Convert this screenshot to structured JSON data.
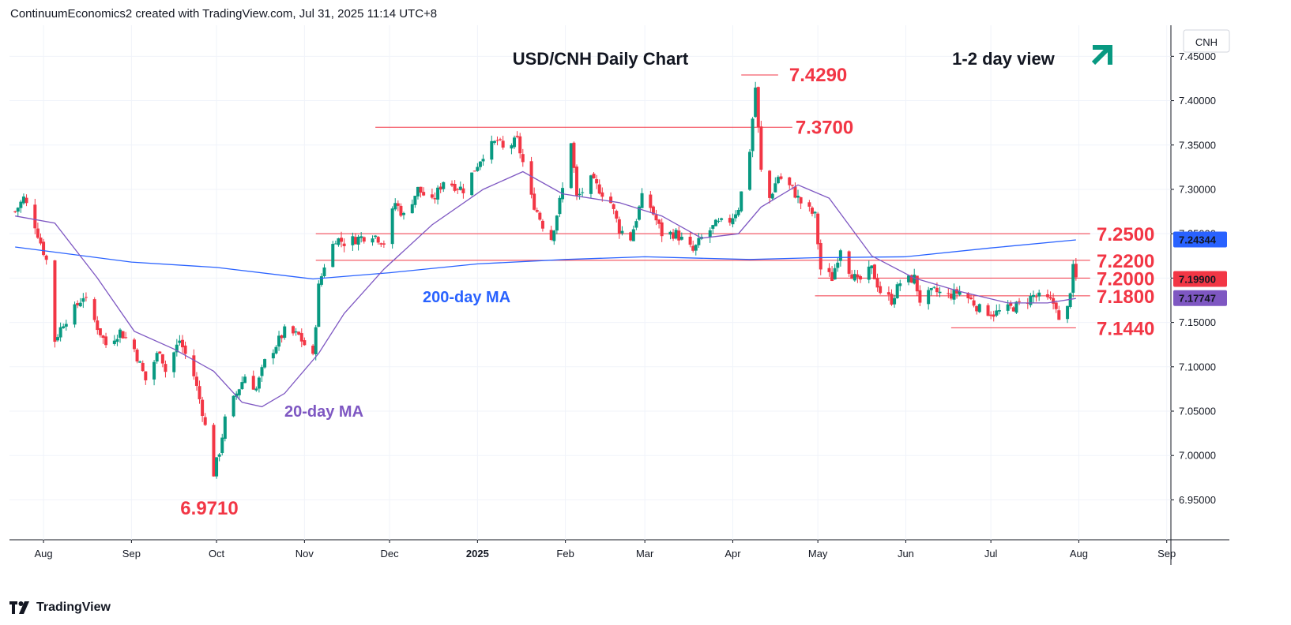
{
  "header": {
    "attribution": "ContinuumEconomics2 created with TradingView.com, Jul 31, 2025 11:14 UTC+8"
  },
  "footer": {
    "brand": "TradingView"
  },
  "colors": {
    "up": "#089981",
    "down": "#f23645",
    "ma20": "#7e57c2",
    "ma200": "#2962ff",
    "level": "#f23645",
    "arrow": "#089981",
    "grid": "#f0f3fa"
  },
  "chart_data": {
    "type": "candlestick",
    "title": "USD/CNH Daily Chart",
    "subtitle": "1-2 day view",
    "currency_label": "CNH",
    "ylim": [
      6.905,
      7.485
    ],
    "y_ticks": [
      "7.45000",
      "7.40000",
      "7.35000",
      "7.30000",
      "7.25000",
      "7.20000",
      "7.15000",
      "7.10000",
      "7.05000",
      "7.00000",
      "6.95000"
    ],
    "x_ticks": [
      {
        "label": "Aug",
        "bold": false
      },
      {
        "label": "Sep",
        "bold": false
      },
      {
        "label": "Oct",
        "bold": false
      },
      {
        "label": "Nov",
        "bold": false
      },
      {
        "label": "Dec",
        "bold": false
      },
      {
        "label": "2025",
        "bold": true
      },
      {
        "label": "Feb",
        "bold": false
      },
      {
        "label": "Mar",
        "bold": false
      },
      {
        "label": "Apr",
        "bold": false
      },
      {
        "label": "May",
        "bold": false
      },
      {
        "label": "Jun",
        "bold": false
      },
      {
        "label": "Jul",
        "bold": false
      },
      {
        "label": "Aug",
        "bold": false
      },
      {
        "label": "Sep",
        "bold": false
      }
    ],
    "price_path": [
      [
        "2024-07-22",
        7.275
      ],
      [
        "2024-07-25",
        7.29
      ],
      [
        "2024-07-29",
        7.26
      ],
      [
        "2024-08-02",
        7.22
      ],
      [
        "2024-08-05",
        7.13
      ],
      [
        "2024-08-08",
        7.15
      ],
      [
        "2024-08-12",
        7.165
      ],
      [
        "2024-08-15",
        7.18
      ],
      [
        "2024-08-20",
        7.145
      ],
      [
        "2024-08-23",
        7.125
      ],
      [
        "2024-08-28",
        7.14
      ],
      [
        "2024-09-02",
        7.12
      ],
      [
        "2024-09-06",
        7.085
      ],
      [
        "2024-09-11",
        7.12
      ],
      [
        "2024-09-13",
        7.095
      ],
      [
        "2024-09-18",
        7.13
      ],
      [
        "2024-09-23",
        7.09
      ],
      [
        "2024-09-26",
        7.05
      ],
      [
        "2024-09-30",
        6.98
      ],
      [
        "2024-10-02",
        7.005
      ],
      [
        "2024-10-04",
        7.04
      ],
      [
        "2024-10-08",
        7.07
      ],
      [
        "2024-10-11",
        7.09
      ],
      [
        "2024-10-15",
        7.075
      ],
      [
        "2024-10-18",
        7.105
      ],
      [
        "2024-10-22",
        7.125
      ],
      [
        "2024-10-25",
        7.14
      ],
      [
        "2024-10-30",
        7.135
      ],
      [
        "2024-11-04",
        7.11
      ],
      [
        "2024-11-06",
        7.19
      ],
      [
        "2024-11-08",
        7.215
      ],
      [
        "2024-11-12",
        7.245
      ],
      [
        "2024-11-15",
        7.24
      ],
      [
        "2024-11-20",
        7.245
      ],
      [
        "2024-11-25",
        7.25
      ],
      [
        "2024-11-29",
        7.24
      ],
      [
        "2024-12-03",
        7.285
      ],
      [
        "2024-12-06",
        7.27
      ],
      [
        "2024-12-11",
        7.3
      ],
      [
        "2024-12-16",
        7.285
      ],
      [
        "2024-12-20",
        7.31
      ],
      [
        "2024-12-27",
        7.3
      ],
      [
        "2025-01-03",
        7.34
      ],
      [
        "2025-01-08",
        7.355
      ],
      [
        "2025-01-10",
        7.345
      ],
      [
        "2025-01-15",
        7.355
      ],
      [
        "2025-01-17",
        7.33
      ],
      [
        "2025-01-20",
        7.29
      ],
      [
        "2025-01-24",
        7.26
      ],
      [
        "2025-01-27",
        7.245
      ],
      [
        "2025-01-31",
        7.3
      ],
      [
        "2025-02-03",
        7.355
      ],
      [
        "2025-02-05",
        7.29
      ],
      [
        "2025-02-10",
        7.31
      ],
      [
        "2025-02-13",
        7.3
      ],
      [
        "2025-02-17",
        7.285
      ],
      [
        "2025-02-20",
        7.255
      ],
      [
        "2025-02-24",
        7.245
      ],
      [
        "2025-02-28",
        7.29
      ],
      [
        "2025-03-03",
        7.28
      ],
      [
        "2025-03-07",
        7.25
      ],
      [
        "2025-03-12",
        7.25
      ],
      [
        "2025-03-18",
        7.23
      ],
      [
        "2025-03-21",
        7.245
      ],
      [
        "2025-03-26",
        7.26
      ],
      [
        "2025-03-31",
        7.265
      ],
      [
        "2025-04-03",
        7.28
      ],
      [
        "2025-04-07",
        7.345
      ],
      [
        "2025-04-09",
        7.415
      ],
      [
        "2025-04-11",
        7.32
      ],
      [
        "2025-04-14",
        7.29
      ],
      [
        "2025-04-17",
        7.315
      ],
      [
        "2025-04-22",
        7.3
      ],
      [
        "2025-04-25",
        7.285
      ],
      [
        "2025-04-30",
        7.27
      ],
      [
        "2025-05-02",
        7.21
      ],
      [
        "2025-05-06",
        7.2
      ],
      [
        "2025-05-09",
        7.235
      ],
      [
        "2025-05-12",
        7.21
      ],
      [
        "2025-05-15",
        7.195
      ],
      [
        "2025-05-20",
        7.21
      ],
      [
        "2025-05-23",
        7.185
      ],
      [
        "2025-05-27",
        7.175
      ],
      [
        "2025-05-30",
        7.195
      ],
      [
        "2025-06-04",
        7.2
      ],
      [
        "2025-06-06",
        7.175
      ],
      [
        "2025-06-11",
        7.185
      ],
      [
        "2025-06-16",
        7.18
      ],
      [
        "2025-06-20",
        7.185
      ],
      [
        "2025-06-24",
        7.175
      ],
      [
        "2025-06-27",
        7.165
      ],
      [
        "2025-07-02",
        7.16
      ],
      [
        "2025-07-07",
        7.165
      ],
      [
        "2025-07-11",
        7.17
      ],
      [
        "2025-07-16",
        7.18
      ],
      [
        "2025-07-21",
        7.175
      ],
      [
        "2025-07-24",
        7.17
      ],
      [
        "2025-07-25",
        7.15
      ],
      [
        "2025-07-28",
        7.165
      ],
      [
        "2025-07-30",
        7.21
      ],
      [
        "2025-07-31",
        7.199
      ]
    ],
    "ma20_path": [
      [
        "2024-07-22",
        7.27
      ],
      [
        "2024-08-05",
        7.262
      ],
      [
        "2024-08-20",
        7.2
      ],
      [
        "2024-09-02",
        7.14
      ],
      [
        "2024-09-16",
        7.12
      ],
      [
        "2024-09-30",
        7.095
      ],
      [
        "2024-10-10",
        7.06
      ],
      [
        "2024-10-17",
        7.055
      ],
      [
        "2024-10-25",
        7.07
      ],
      [
        "2024-11-06",
        7.115
      ],
      [
        "2024-11-15",
        7.16
      ],
      [
        "2024-11-29",
        7.21
      ],
      [
        "2024-12-16",
        7.26
      ],
      [
        "2025-01-03",
        7.3
      ],
      [
        "2025-01-17",
        7.32
      ],
      [
        "2025-01-31",
        7.295
      ],
      [
        "2025-02-20",
        7.285
      ],
      [
        "2025-03-07",
        7.27
      ],
      [
        "2025-03-21",
        7.245
      ],
      [
        "2025-04-03",
        7.25
      ],
      [
        "2025-04-11",
        7.28
      ],
      [
        "2025-04-24",
        7.305
      ],
      [
        "2025-05-05",
        7.29
      ],
      [
        "2025-05-20",
        7.225
      ],
      [
        "2025-06-04",
        7.2
      ],
      [
        "2025-06-20",
        7.185
      ],
      [
        "2025-07-07",
        7.172
      ],
      [
        "2025-07-21",
        7.172
      ],
      [
        "2025-07-31",
        7.177
      ]
    ],
    "ma200_path": [
      [
        "2024-07-22",
        7.235
      ],
      [
        "2024-09-01",
        7.218
      ],
      [
        "2024-10-01",
        7.212
      ],
      [
        "2024-11-04",
        7.199
      ],
      [
        "2024-12-01",
        7.206
      ],
      [
        "2025-01-01",
        7.216
      ],
      [
        "2025-02-01",
        7.221
      ],
      [
        "2025-03-01",
        7.224
      ],
      [
        "2025-04-07",
        7.221
      ],
      [
        "2025-05-01",
        7.223
      ],
      [
        "2025-06-01",
        7.224
      ],
      [
        "2025-07-01",
        7.234
      ],
      [
        "2025-07-31",
        7.243
      ]
    ],
    "price_labels": [
      {
        "text": "7.24344",
        "value": 7.24344,
        "bg": "#2962ff",
        "fg": "#ffffff"
      },
      {
        "text": "7.19900",
        "value": 7.199,
        "bg": "#f23645",
        "fg": "#ffffff"
      },
      {
        "text": "7.17747",
        "value": 7.17747,
        "bg": "#7e57c2",
        "fg": "#ffffff"
      }
    ],
    "levels": [
      {
        "text": "7.4290",
        "value": 7.429,
        "from": "2025-04-04",
        "to": "2025-04-17"
      },
      {
        "text": "7.3700",
        "value": 7.37,
        "from": "2024-11-26",
        "to": "2025-04-22"
      },
      {
        "text": "7.2500",
        "value": 7.25,
        "from": "2024-11-05",
        "to": "2025-08-05"
      },
      {
        "text": "7.2200",
        "value": 7.22,
        "from": "2024-11-05",
        "to": "2025-08-05"
      },
      {
        "text": "7.2000",
        "value": 7.2,
        "from": "2025-05-01",
        "to": "2025-08-05"
      },
      {
        "text": "7.1800",
        "value": 7.18,
        "from": "2025-04-30",
        "to": "2025-08-05"
      },
      {
        "text": "7.1440",
        "value": 7.144,
        "from": "2025-06-17",
        "to": "2025-07-31"
      },
      {
        "text": "6.9710",
        "value": 6.971,
        "from": "",
        "to": ""
      }
    ],
    "annotations": [
      {
        "text": "200-day MA",
        "color": "#2962ff"
      },
      {
        "text": "20-day MA",
        "color": "#7e57c2"
      }
    ]
  }
}
